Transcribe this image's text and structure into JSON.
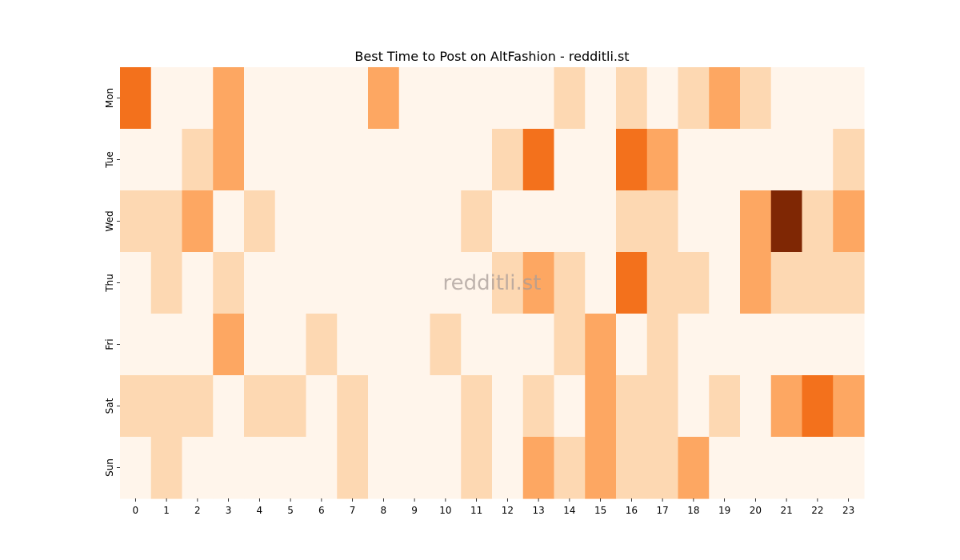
{
  "chart_data": {
    "type": "heatmap",
    "title": "Best Time to Post on AltFashion - redditli.st",
    "watermark": "redditli.st",
    "xlabel": "",
    "ylabel": "",
    "x_categories": [
      "0",
      "1",
      "2",
      "3",
      "4",
      "5",
      "6",
      "7",
      "8",
      "9",
      "10",
      "11",
      "12",
      "13",
      "14",
      "15",
      "16",
      "17",
      "18",
      "19",
      "20",
      "21",
      "22",
      "23"
    ],
    "y_categories": [
      "Mon",
      "Tue",
      "Wed",
      "Thu",
      "Fri",
      "Sat",
      "Sun"
    ],
    "color_scale": [
      "#fff5eb",
      "#fdd8b2",
      "#fda762",
      "#f3711c",
      "#7f2704"
    ],
    "colorbar": false,
    "grid": false,
    "values": [
      [
        3,
        0,
        0,
        2,
        0,
        0,
        0,
        0,
        2,
        0,
        0,
        0,
        0,
        0,
        1,
        0,
        1,
        0,
        1,
        2,
        1,
        0,
        0,
        0
      ],
      [
        0,
        0,
        1,
        2,
        0,
        0,
        0,
        0,
        0,
        0,
        0,
        0,
        1,
        3,
        0,
        0,
        3,
        2,
        0,
        0,
        0,
        0,
        0,
        1
      ],
      [
        1,
        1,
        2,
        0,
        1,
        0,
        0,
        0,
        0,
        0,
        0,
        1,
        0,
        0,
        0,
        0,
        1,
        1,
        0,
        0,
        2,
        4,
        1,
        2
      ],
      [
        0,
        1,
        0,
        1,
        0,
        0,
        0,
        0,
        0,
        0,
        0,
        0,
        1,
        2,
        1,
        0,
        3,
        1,
        1,
        0,
        2,
        1,
        1,
        1
      ],
      [
        0,
        0,
        0,
        2,
        0,
        0,
        1,
        0,
        0,
        0,
        1,
        0,
        0,
        0,
        1,
        2,
        0,
        1,
        0,
        0,
        0,
        0,
        0,
        0
      ],
      [
        1,
        1,
        1,
        0,
        1,
        1,
        0,
        1,
        0,
        0,
        0,
        1,
        0,
        1,
        0,
        2,
        1,
        1,
        0,
        1,
        0,
        2,
        3,
        2
      ],
      [
        0,
        1,
        0,
        0,
        0,
        0,
        0,
        1,
        0,
        0,
        0,
        1,
        0,
        2,
        1,
        2,
        1,
        1,
        2,
        0,
        0,
        0,
        0,
        0
      ]
    ]
  }
}
